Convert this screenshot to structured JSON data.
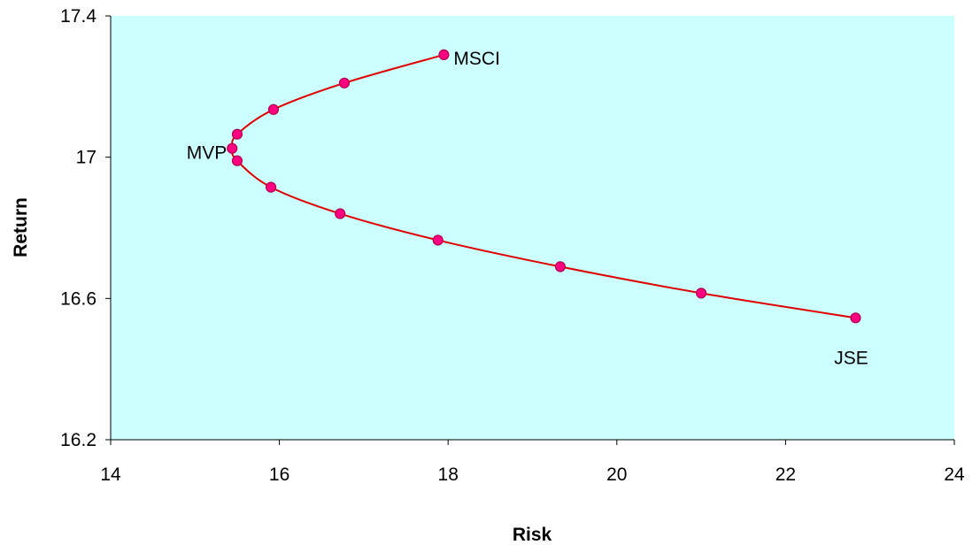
{
  "chart_data": {
    "type": "scatter",
    "title": "",
    "xlabel": "Risk",
    "ylabel": "Return",
    "xlim": [
      14,
      24
    ],
    "ylim": [
      16.2,
      17.4
    ],
    "xticks": [
      14,
      16,
      18,
      20,
      22,
      24
    ],
    "yticks": [
      16.2,
      16.6,
      17,
      17.4
    ],
    "x_tick_labels": [
      "14",
      "16",
      "18",
      "20",
      "22",
      "24"
    ],
    "y_tick_labels": [
      "16.2",
      "16.6",
      "17",
      "17.4"
    ],
    "grid": false,
    "colors": {
      "plot_background": "#ccffff",
      "line": "#e00000",
      "marker_fill": "#ff0080",
      "marker_stroke": "#b00050"
    },
    "series": [
      {
        "x": [
          17.95,
          16.77,
          15.93,
          15.5,
          15.44,
          15.5,
          15.9,
          16.72,
          17.88,
          19.33,
          21.0,
          22.83
        ],
        "y": [
          17.29,
          17.21,
          17.135,
          17.065,
          17.025,
          16.99,
          16.915,
          16.84,
          16.765,
          16.69,
          16.615,
          16.545
        ]
      }
    ],
    "annotations": [
      {
        "text": "MSCI",
        "x": 17.95,
        "y": 17.29,
        "anchor": "right"
      },
      {
        "text": "MVP",
        "x": 15.44,
        "y": 17.025,
        "anchor": "left"
      },
      {
        "text": "JSE",
        "x": 22.83,
        "y": 16.545,
        "anchor": "below"
      }
    ]
  }
}
